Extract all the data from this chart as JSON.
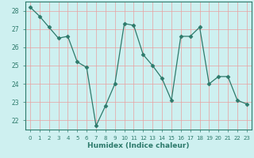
{
  "x": [
    0,
    1,
    2,
    3,
    4,
    5,
    6,
    7,
    8,
    9,
    10,
    11,
    12,
    13,
    14,
    15,
    16,
    17,
    18,
    19,
    20,
    21,
    22,
    23
  ],
  "y": [
    28.2,
    27.7,
    27.1,
    26.5,
    26.6,
    25.2,
    24.9,
    21.7,
    22.8,
    24.0,
    27.3,
    27.2,
    25.6,
    25.0,
    24.3,
    23.1,
    26.6,
    26.6,
    27.1,
    24.0,
    24.4,
    24.4,
    23.1,
    22.9
  ],
  "xlabel": "Humidex (Indice chaleur)",
  "xlim": [
    -0.5,
    23.5
  ],
  "ylim": [
    21.5,
    28.5
  ],
  "yticks": [
    22,
    23,
    24,
    25,
    26,
    27,
    28
  ],
  "xticks": [
    0,
    1,
    2,
    3,
    4,
    5,
    6,
    7,
    8,
    9,
    10,
    11,
    12,
    13,
    14,
    15,
    16,
    17,
    18,
    19,
    20,
    21,
    22,
    23
  ],
  "line_color": "#2d7a6b",
  "marker": "D",
  "marker_size": 2.5,
  "bg_color": "#cef0f0",
  "grid_color": "#e8a0a0",
  "axis_color": "#2d7a6b",
  "tick_color": "#2d7a6b",
  "xlabel_color": "#2d7a6b"
}
